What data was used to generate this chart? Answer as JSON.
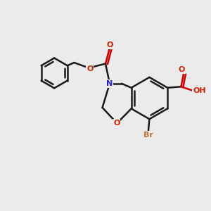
{
  "bg_color": "#ebebeb",
  "line_color": "#1a1a1a",
  "bond_width": 1.8,
  "figsize": [
    3.0,
    3.0
  ],
  "dpi": 100,
  "xlim": [
    0,
    10
  ],
  "ylim": [
    0,
    10
  ]
}
